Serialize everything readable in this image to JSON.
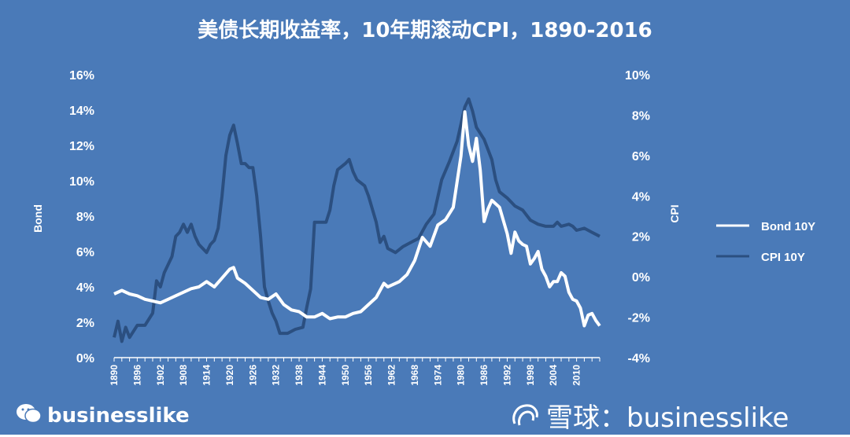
{
  "title": "美债长期收益率，10年期滚动CPI，1890-2016",
  "watermark_left": "businesslike",
  "watermark_right": "雪球：businesslike",
  "colors": {
    "background": "#4a7ab8",
    "bond": "#ffffff",
    "cpi": "#2b4f80"
  },
  "chart_data": {
    "type": "line",
    "title": "美债长期收益率，10年期滚动CPI，1890-2016",
    "xlabel": "",
    "ylabel": "Bond",
    "y2label": "CPI",
    "xlim": [
      1890,
      2016
    ],
    "ylim": [
      0,
      16
    ],
    "y2lim": [
      -4,
      10
    ],
    "grid": false,
    "legend_position": "right",
    "x_ticks": [
      "1890",
      "1896",
      "1902",
      "1908",
      "1914",
      "1920",
      "1926",
      "1932",
      "1938",
      "1944",
      "1950",
      "1956",
      "1962",
      "1968",
      "1974",
      "1980",
      "1986",
      "1992",
      "1998",
      "2004",
      "2010"
    ],
    "y_ticks": [
      "0%",
      "2%",
      "4%",
      "6%",
      "8%",
      "10%",
      "12%",
      "14%",
      "16%"
    ],
    "y2_ticks": [
      "-4%",
      "-2%",
      "0%",
      "2%",
      "4%",
      "6%",
      "8%",
      "10%"
    ],
    "series": [
      {
        "name": "Bond 10Y",
        "axis": "left",
        "unit": "%",
        "points": [
          [
            1890,
            3.6
          ],
          [
            1892,
            3.8
          ],
          [
            1894,
            3.6
          ],
          [
            1896,
            3.5
          ],
          [
            1898,
            3.3
          ],
          [
            1900,
            3.2
          ],
          [
            1902,
            3.1
          ],
          [
            1904,
            3.3
          ],
          [
            1906,
            3.5
          ],
          [
            1908,
            3.7
          ],
          [
            1910,
            3.9
          ],
          [
            1912,
            4.0
          ],
          [
            1914,
            4.3
          ],
          [
            1916,
            4.0
          ],
          [
            1918,
            4.5
          ],
          [
            1920,
            5.0
          ],
          [
            1921,
            5.1
          ],
          [
            1922,
            4.5
          ],
          [
            1924,
            4.2
          ],
          [
            1926,
            3.8
          ],
          [
            1928,
            3.4
          ],
          [
            1930,
            3.3
          ],
          [
            1932,
            3.6
          ],
          [
            1934,
            3.0
          ],
          [
            1936,
            2.7
          ],
          [
            1938,
            2.6
          ],
          [
            1940,
            2.3
          ],
          [
            1942,
            2.3
          ],
          [
            1944,
            2.5
          ],
          [
            1946,
            2.2
          ],
          [
            1948,
            2.3
          ],
          [
            1950,
            2.3
          ],
          [
            1952,
            2.5
          ],
          [
            1954,
            2.6
          ],
          [
            1956,
            3.0
          ],
          [
            1958,
            3.4
          ],
          [
            1960,
            4.2
          ],
          [
            1961,
            4.0
          ],
          [
            1962,
            4.1
          ],
          [
            1964,
            4.3
          ],
          [
            1966,
            4.7
          ],
          [
            1968,
            5.5
          ],
          [
            1970,
            6.8
          ],
          [
            1972,
            6.3
          ],
          [
            1974,
            7.5
          ],
          [
            1976,
            7.8
          ],
          [
            1978,
            8.5
          ],
          [
            1980,
            11.4
          ],
          [
            1981,
            13.9
          ],
          [
            1982,
            12.0
          ],
          [
            1983,
            11.1
          ],
          [
            1984,
            12.4
          ],
          [
            1985,
            10.6
          ],
          [
            1986,
            7.7
          ],
          [
            1987,
            8.4
          ],
          [
            1988,
            8.9
          ],
          [
            1990,
            8.5
          ],
          [
            1992,
            7.0
          ],
          [
            1993,
            5.9
          ],
          [
            1994,
            7.1
          ],
          [
            1995,
            6.6
          ],
          [
            1996,
            6.4
          ],
          [
            1997,
            6.3
          ],
          [
            1998,
            5.3
          ],
          [
            1999,
            5.6
          ],
          [
            2000,
            6.0
          ],
          [
            2001,
            5.0
          ],
          [
            2002,
            4.6
          ],
          [
            2003,
            4.0
          ],
          [
            2004,
            4.3
          ],
          [
            2005,
            4.3
          ],
          [
            2006,
            4.8
          ],
          [
            2007,
            4.6
          ],
          [
            2008,
            3.7
          ],
          [
            2009,
            3.3
          ],
          [
            2010,
            3.2
          ],
          [
            2011,
            2.8
          ],
          [
            2012,
            1.8
          ],
          [
            2013,
            2.4
          ],
          [
            2014,
            2.5
          ],
          [
            2015,
            2.1
          ],
          [
            2016,
            1.8
          ]
        ]
      },
      {
        "name": "CPI 10Y",
        "axis": "right",
        "unit": "%",
        "points": [
          [
            1890,
            -3.0
          ],
          [
            1891,
            -2.2
          ],
          [
            1892,
            -3.2
          ],
          [
            1893,
            -2.5
          ],
          [
            1894,
            -3.0
          ],
          [
            1896,
            -2.4
          ],
          [
            1898,
            -2.4
          ],
          [
            1900,
            -1.8
          ],
          [
            1901,
            -0.2
          ],
          [
            1902,
            -0.5
          ],
          [
            1903,
            0.2
          ],
          [
            1904,
            0.6
          ],
          [
            1905,
            1.0
          ],
          [
            1906,
            2.0
          ],
          [
            1907,
            2.2
          ],
          [
            1908,
            2.6
          ],
          [
            1909,
            2.2
          ],
          [
            1910,
            2.6
          ],
          [
            1911,
            2.0
          ],
          [
            1912,
            1.6
          ],
          [
            1913,
            1.4
          ],
          [
            1914,
            1.2
          ],
          [
            1915,
            1.6
          ],
          [
            1916,
            1.8
          ],
          [
            1917,
            2.4
          ],
          [
            1918,
            4.0
          ],
          [
            1919,
            6.0
          ],
          [
            1920,
            7.0
          ],
          [
            1921,
            7.5
          ],
          [
            1922,
            6.6
          ],
          [
            1923,
            5.6
          ],
          [
            1924,
            5.6
          ],
          [
            1925,
            5.4
          ],
          [
            1926,
            5.4
          ],
          [
            1927,
            4.0
          ],
          [
            1928,
            2.0
          ],
          [
            1929,
            -0.5
          ],
          [
            1930,
            -1.2
          ],
          [
            1931,
            -1.8
          ],
          [
            1932,
            -2.2
          ],
          [
            1933,
            -2.8
          ],
          [
            1935,
            -2.8
          ],
          [
            1937,
            -2.6
          ],
          [
            1939,
            -2.5
          ],
          [
            1940,
            -1.5
          ],
          [
            1941,
            -0.6
          ],
          [
            1942,
            2.7
          ],
          [
            1943,
            2.7
          ],
          [
            1945,
            2.7
          ],
          [
            1946,
            3.3
          ],
          [
            1947,
            4.5
          ],
          [
            1948,
            5.3
          ],
          [
            1950,
            5.6
          ],
          [
            1951,
            5.8
          ],
          [
            1952,
            5.2
          ],
          [
            1953,
            4.8
          ],
          [
            1955,
            4.5
          ],
          [
            1956,
            4.0
          ],
          [
            1958,
            2.7
          ],
          [
            1959,
            1.7
          ],
          [
            1960,
            2.0
          ],
          [
            1961,
            1.4
          ],
          [
            1963,
            1.2
          ],
          [
            1965,
            1.5
          ],
          [
            1967,
            1.7
          ],
          [
            1969,
            1.9
          ],
          [
            1971,
            2.6
          ],
          [
            1973,
            3.1
          ],
          [
            1975,
            4.8
          ],
          [
            1977,
            5.7
          ],
          [
            1979,
            6.7
          ],
          [
            1981,
            8.4
          ],
          [
            1982,
            8.8
          ],
          [
            1983,
            8.2
          ],
          [
            1984,
            7.4
          ],
          [
            1986,
            6.8
          ],
          [
            1988,
            5.8
          ],
          [
            1989,
            4.8
          ],
          [
            1990,
            4.2
          ],
          [
            1992,
            3.9
          ],
          [
            1993,
            3.7
          ],
          [
            1994,
            3.5
          ],
          [
            1996,
            3.3
          ],
          [
            1998,
            2.8
          ],
          [
            2000,
            2.6
          ],
          [
            2002,
            2.5
          ],
          [
            2004,
            2.5
          ],
          [
            2005,
            2.7
          ],
          [
            2006,
            2.5
          ],
          [
            2008,
            2.6
          ],
          [
            2009,
            2.5
          ],
          [
            2010,
            2.3
          ],
          [
            2012,
            2.4
          ],
          [
            2014,
            2.2
          ],
          [
            2016,
            2.0
          ]
        ]
      }
    ]
  }
}
